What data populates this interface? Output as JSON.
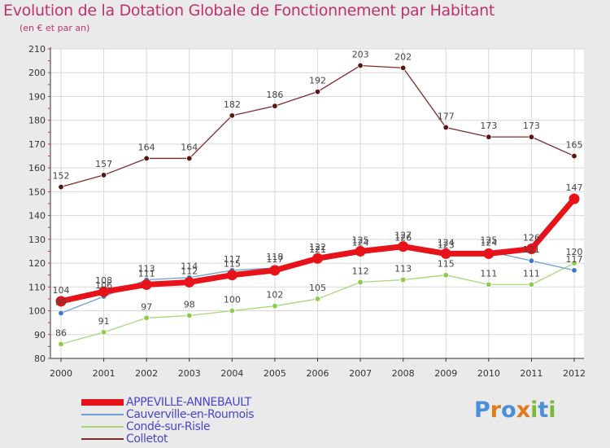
{
  "title": "Evolution de la Dotation Globale de Fonctionnement par Habitant",
  "subtitle": "(en € et par an)",
  "logo": {
    "text": "Proxiti",
    "letters": [
      {
        "ch": "P",
        "color": "#4a90d9"
      },
      {
        "ch": "r",
        "color": "#e07a1f"
      },
      {
        "ch": "o",
        "color": "#4a90d9"
      },
      {
        "ch": "x",
        "color": "#e07a1f"
      },
      {
        "ch": "i",
        "color": "#7cb83a"
      },
      {
        "ch": "t",
        "color": "#4a90d9"
      },
      {
        "ch": "i",
        "color": "#7cb83a"
      }
    ]
  },
  "chart_data": {
    "type": "line",
    "title": "Evolution de la Dotation Globale de Fonctionnement par Habitant",
    "ylabel": "(en € et par an)",
    "xlabel": "",
    "categories": [
      "2000",
      "2001",
      "2002",
      "2003",
      "2004",
      "2005",
      "2006",
      "2007",
      "2008",
      "2009",
      "2010",
      "2011",
      "2012"
    ],
    "ylim": [
      80,
      210
    ],
    "yticks": [
      80,
      90,
      100,
      110,
      120,
      130,
      140,
      150,
      160,
      170,
      180,
      190,
      200,
      210
    ],
    "grid": true,
    "legend": "bottom",
    "series": [
      {
        "name": "APPEVILLE-ANNEBAULT",
        "color": "#e8131a",
        "point_color": "#e8131a",
        "weight": "bold",
        "values": [
          104,
          108,
          111,
          112,
          115,
          117,
          122,
          125,
          127,
          124,
          124,
          126,
          147
        ],
        "labels": [
          "104",
          "108",
          "111",
          "112",
          "115",
          "117",
          "122",
          "125",
          "127",
          "124",
          "124",
          "126",
          "147"
        ]
      },
      {
        "name": "Cauverville-en-Roumois",
        "color": "#6e9fd0",
        "point_color": "#3a78c8",
        "weight": "normal",
        "values": [
          99,
          106,
          113,
          114,
          117,
          118,
          121,
          124,
          126,
          123,
          125,
          121,
          117
        ],
        "labels": [
          "99",
          "106",
          "113",
          "114",
          "117",
          "118",
          "121",
          "124",
          "126",
          "123",
          "125",
          "121",
          "117"
        ]
      },
      {
        "name": "Condé-sur-Risle",
        "color": "#a6d878",
        "point_color": "#8ccc4a",
        "weight": "normal",
        "values": [
          86,
          91,
          97,
          98,
          100,
          102,
          105,
          112,
          113,
          115,
          111,
          111,
          120
        ],
        "labels": [
          "86",
          "91",
          "97",
          "98",
          "100",
          "102",
          "105",
          "112",
          "113",
          "115",
          "111",
          "111",
          "120"
        ]
      },
      {
        "name": "Colletot",
        "color": "#7d2a2a",
        "point_color": "#5a1515",
        "weight": "normal",
        "values": [
          152,
          157,
          164,
          164,
          182,
          186,
          192,
          203,
          202,
          177,
          173,
          173,
          165
        ],
        "labels": [
          "152",
          "157",
          "164",
          "164",
          "182",
          "186",
          "192",
          "203",
          "202",
          "177",
          "173",
          "173",
          "165"
        ]
      }
    ]
  }
}
